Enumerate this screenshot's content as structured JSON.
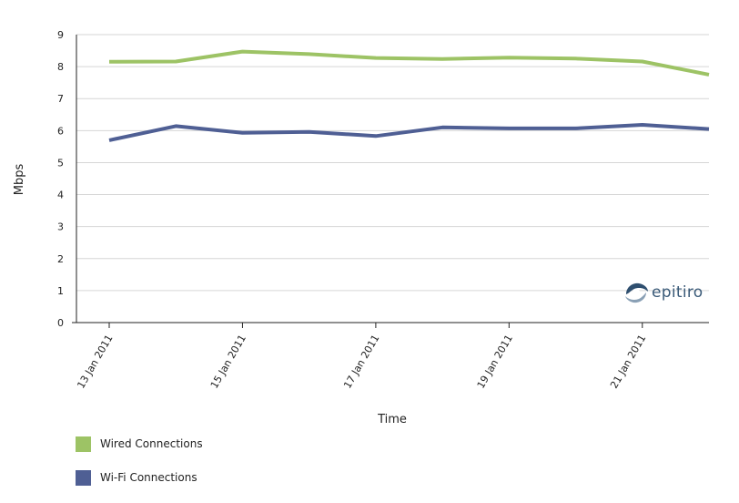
{
  "chart_data": {
    "type": "line",
    "xlabel": "Time",
    "ylabel": "Mbps",
    "ylim": [
      0,
      9
    ],
    "yticks": [
      0,
      1,
      2,
      3,
      4,
      5,
      6,
      7,
      8,
      9
    ],
    "x": [
      "2011-01-13",
      "2011-01-14",
      "2011-01-15",
      "2011-01-16",
      "2011-01-17",
      "2011-01-18",
      "2011-01-19",
      "2011-01-20",
      "2011-01-21",
      "2011-01-22"
    ],
    "xtick_labels": [
      "13 Jan 2011",
      "15 Jan 2011",
      "17 Jan 2011",
      "19 Jan 2011",
      "21 Jan 2011"
    ],
    "grid": "horizontal",
    "legend_position": "bottom-left",
    "series": [
      {
        "name": "Wired Connections",
        "color": "#9dc365",
        "values": [
          8.15,
          8.16,
          8.47,
          8.39,
          8.27,
          8.24,
          8.28,
          8.25,
          8.16,
          7.75
        ]
      },
      {
        "name": "Wi-Fi Connections",
        "color": "#4f5f94",
        "values": [
          5.7,
          6.14,
          5.93,
          5.96,
          5.83,
          6.1,
          6.07,
          6.07,
          6.18,
          6.05
        ]
      }
    ]
  },
  "watermark": {
    "text": "epitiro",
    "icon": "epitiro-logo-icon",
    "color": "#3a5a78"
  }
}
